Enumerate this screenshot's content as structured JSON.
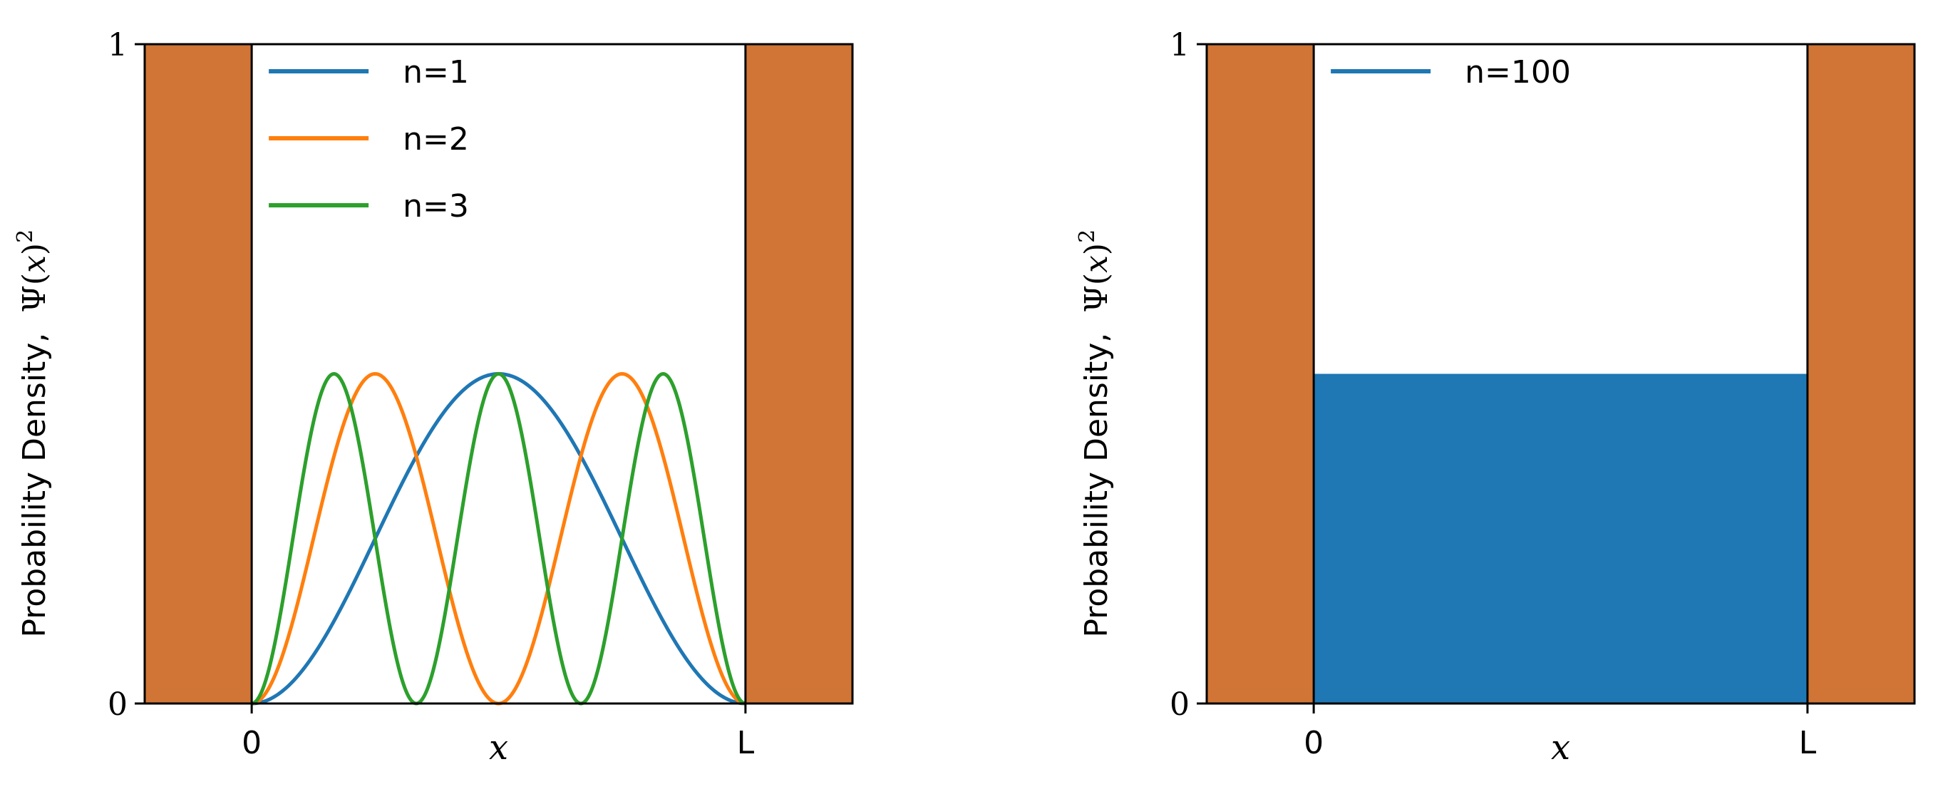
{
  "chart_data": [
    {
      "type": "line",
      "ylabel_text": "Probability Density,",
      "ylabel_math_psi": "Ψ(",
      "ylabel_math_x": "x",
      "ylabel_math_close": ")",
      "ylabel_math_exp": "2",
      "xlabel": "x",
      "x_ticks": [
        "0",
        "L"
      ],
      "y_ticks": [
        "0",
        "1"
      ],
      "xlim": [
        -0.2167,
        1.2167
      ],
      "ylim": [
        0,
        1
      ],
      "wall_color": "#d07536",
      "grid": false,
      "legend_position": "upper-left",
      "series": [
        {
          "name": "n=1",
          "n": 1,
          "color": "#1f77b4",
          "peak": 0.5
        },
        {
          "name": "n=2",
          "n": 2,
          "color": "#ff7f0e",
          "peak": 0.5
        },
        {
          "name": "n=3",
          "n": 3,
          "color": "#2ca02c",
          "peak": 0.5
        }
      ]
    },
    {
      "type": "area",
      "ylabel_text": "Probability Density,",
      "ylabel_math_psi": "Ψ(",
      "ylabel_math_x": "x",
      "ylabel_math_close": ")",
      "ylabel_math_exp": "2",
      "xlabel": "x",
      "x_ticks": [
        "0",
        "L"
      ],
      "y_ticks": [
        "0",
        "1"
      ],
      "xlim": [
        -0.2167,
        1.2167
      ],
      "ylim": [
        0,
        1
      ],
      "wall_color": "#d07536",
      "grid": false,
      "legend_position": "upper-left",
      "series": [
        {
          "name": "n=100",
          "n": 100,
          "color": "#1f77b4",
          "peak": 0.5
        }
      ]
    }
  ]
}
